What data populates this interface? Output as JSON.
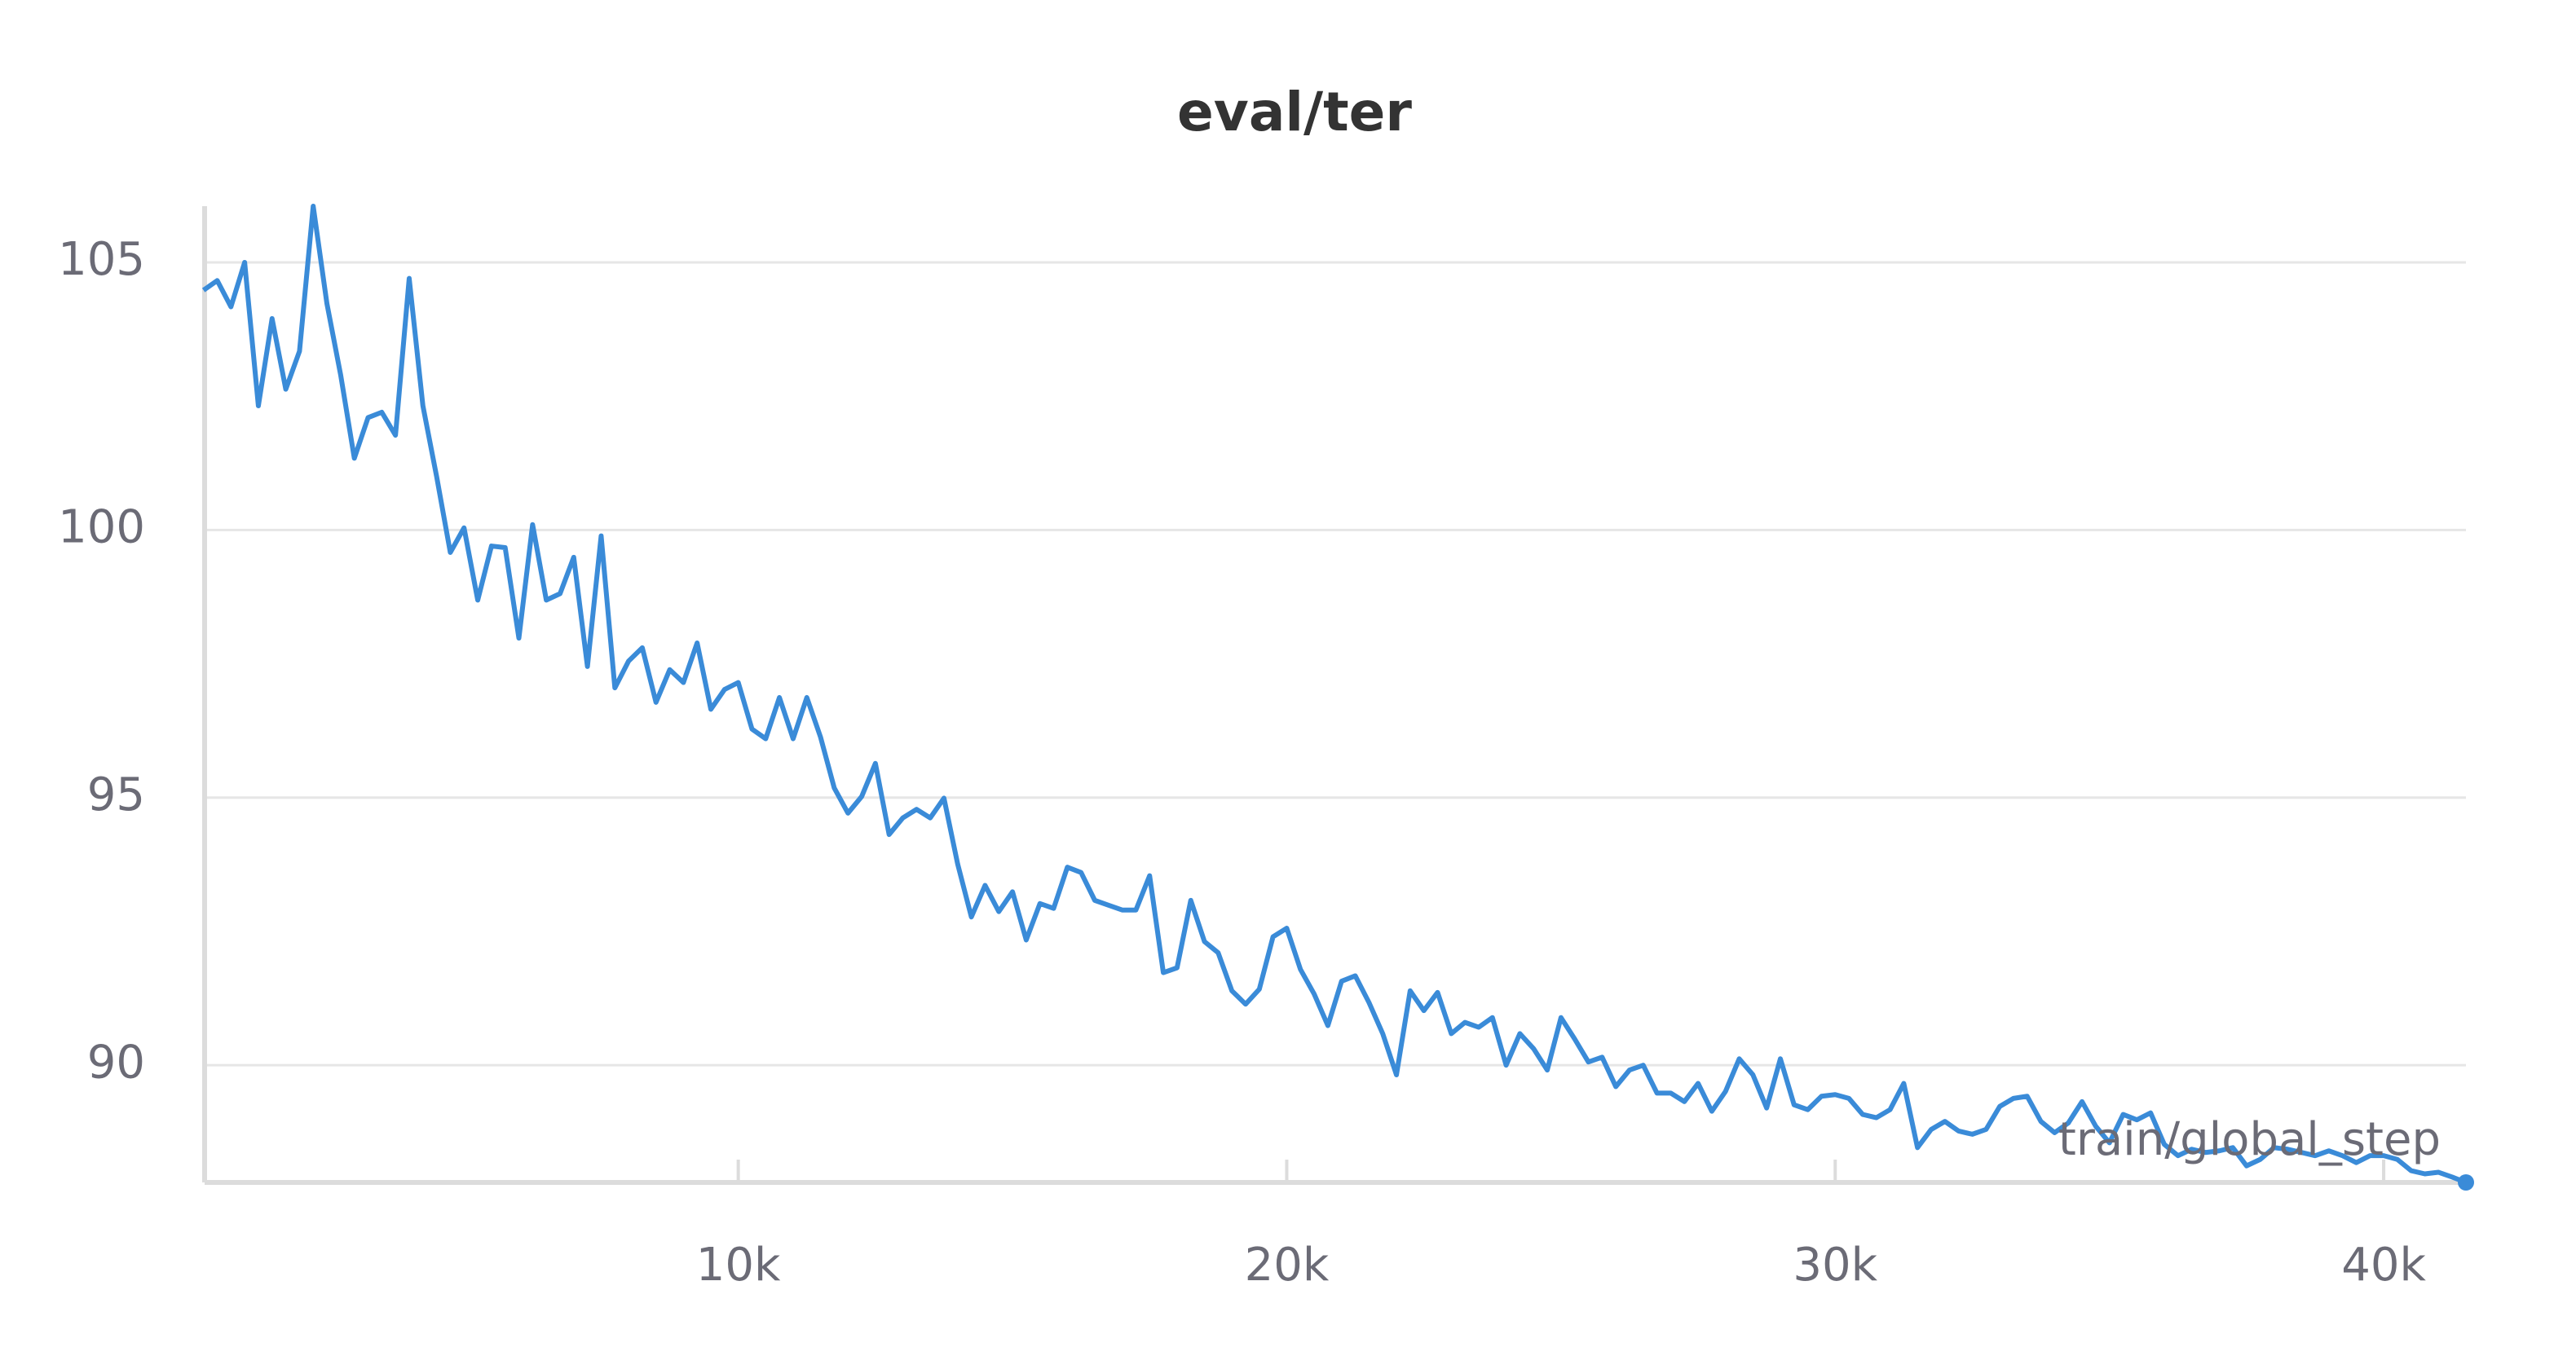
{
  "chart_data": {
    "type": "line",
    "title": "eval/ter",
    "xlabel": "train/global_step",
    "x": [
      250,
      500,
      750,
      1000,
      1250,
      1500,
      1750,
      2000,
      2250,
      2500,
      2750,
      3000,
      3250,
      3500,
      3750,
      4000,
      4250,
      4500,
      4750,
      5000,
      5250,
      5500,
      5750,
      6000,
      6250,
      6500,
      6750,
      7000,
      7250,
      7500,
      7750,
      8000,
      8250,
      8500,
      8750,
      9000,
      9250,
      9500,
      9750,
      10000,
      10250,
      10500,
      10750,
      11000,
      11250,
      11500,
      11750,
      12000,
      12250,
      12500,
      12750,
      13000,
      13250,
      13500,
      13750,
      14000,
      14250,
      14500,
      14750,
      15000,
      15250,
      15500,
      15750,
      16000,
      16250,
      16500,
      16750,
      17000,
      17250,
      17500,
      17750,
      18000,
      18250,
      18500,
      18750,
      19000,
      19250,
      19500,
      19750,
      20000,
      20250,
      20500,
      20750,
      21000,
      21250,
      21500,
      21750,
      22000,
      22250,
      22500,
      22750,
      23000,
      23250,
      23500,
      23750,
      24000,
      24250,
      24500,
      24750,
      25000,
      25250,
      25500,
      25750,
      26000,
      26250,
      26500,
      26750,
      27000,
      27250,
      27500,
      27750,
      28000,
      28250,
      28500,
      28750,
      29000,
      29250,
      29500,
      29750,
      30000,
      30250,
      30500,
      30750,
      31000,
      31250,
      31500,
      31750,
      32000,
      32250,
      32500,
      32750,
      33000,
      33250,
      33500,
      33750,
      34000,
      34250,
      34500,
      34750,
      35000,
      35250,
      35500,
      35750,
      36000,
      36250,
      36500,
      36750,
      37000,
      37250,
      37500,
      37750,
      38000,
      38250,
      38500,
      38750,
      39000,
      39250,
      39500,
      39750,
      40000,
      40250,
      40500,
      40750,
      41000,
      41250,
      41500
    ],
    "series": [
      {
        "name": "eval/ter",
        "color": "#3a8bd8",
        "values": [
          104.48,
          104.66,
          104.17,
          105.0,
          102.32,
          103.95,
          102.63,
          103.34,
          106.05,
          104.23,
          102.9,
          101.34,
          102.1,
          102.2,
          101.77,
          104.7,
          102.32,
          101.0,
          99.58,
          100.04,
          98.69,
          99.7,
          99.67,
          97.98,
          100.1,
          98.69,
          98.81,
          99.49,
          97.45,
          99.89,
          97.05,
          97.55,
          97.8,
          96.78,
          97.39,
          97.15,
          97.89,
          96.65,
          97.02,
          97.15,
          96.28,
          96.1,
          96.87,
          96.1,
          96.87,
          96.13,
          95.18,
          94.71,
          95.02,
          95.64,
          94.31,
          94.62,
          94.78,
          94.62,
          94.99,
          93.76,
          92.77,
          93.36,
          92.87,
          93.24,
          92.34,
          93.02,
          92.93,
          93.7,
          93.6,
          93.08,
          92.99,
          92.9,
          92.9,
          93.54,
          91.73,
          91.82,
          93.08,
          92.31,
          92.1,
          91.39,
          91.14,
          91.42,
          92.4,
          92.56,
          91.79,
          91.33,
          90.74,
          91.57,
          91.67,
          91.17,
          90.59,
          89.82,
          91.39,
          91.02,
          91.36,
          90.59,
          90.8,
          90.71,
          90.89,
          90.0,
          90.59,
          90.31,
          89.91,
          90.89,
          90.49,
          90.06,
          90.15,
          89.6,
          89.91,
          90.0,
          89.48,
          89.48,
          89.32,
          89.66,
          89.14,
          89.51,
          90.12,
          89.82,
          89.2,
          90.12,
          89.26,
          89.17,
          89.42,
          89.45,
          89.38,
          89.08,
          89.02,
          89.17,
          89.66,
          88.46,
          88.8,
          88.95,
          88.77,
          88.71,
          88.8,
          89.23,
          89.38,
          89.42,
          88.95,
          88.74,
          88.92,
          89.32,
          88.86,
          88.55,
          89.08,
          88.98,
          89.11,
          88.52,
          88.31,
          88.43,
          88.37,
          88.4,
          88.46,
          88.12,
          88.24,
          88.46,
          88.43,
          88.37,
          88.31,
          88.4,
          88.31,
          88.18,
          88.31,
          88.31,
          88.24,
          88.03,
          87.97,
          88.0,
          87.91,
          87.81
        ]
      }
    ],
    "xlim": [
      270,
      41500
    ],
    "ylim": [
      87.81,
      106.05
    ],
    "xticks": [
      {
        "value": 10000,
        "label": "10k"
      },
      {
        "value": 20000,
        "label": "20k"
      },
      {
        "value": 30000,
        "label": "30k"
      },
      {
        "value": 40000,
        "label": "40k"
      }
    ],
    "yticks": [
      90,
      95,
      100,
      105
    ],
    "grid": true
  }
}
